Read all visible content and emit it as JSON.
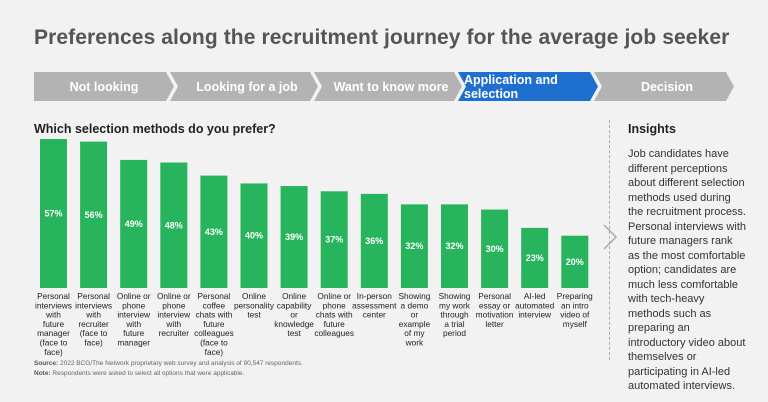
{
  "title": "Preferences along the recruitment journey for the average job seeker",
  "journey": [
    {
      "label": "Not looking",
      "active": false
    },
    {
      "label": "Looking for a job",
      "active": false
    },
    {
      "label": "Want to know more",
      "active": false
    },
    {
      "label": "Application and selection",
      "active": true
    },
    {
      "label": "Decision",
      "active": false
    }
  ],
  "colors": {
    "bar": "#27b45c",
    "active_step": "#1f6fd1",
    "inactive_step": "#b3b3b3"
  },
  "chart_data": {
    "type": "bar",
    "title": "Which selection methods do you prefer?",
    "categories": [
      "Personal interviews with future manager (face to face)",
      "Personal interviews with recruiter (face to face)",
      "Online or phone interview with future manager",
      "Online or phone interview with recruiter",
      "Personal coffee chats with future colleagues (face to face)",
      "Online personality test",
      "Online capability or knowledge test",
      "Online or phone chats with future colleagues",
      "In-person assessment center",
      "Showing a demo or example of my work",
      "Showing my work through a trial period",
      "Personal essay or motivation letter",
      "AI-led automated interview",
      "Preparing an intro video of myself"
    ],
    "category_lines": [
      [
        "Personal",
        "interviews",
        "with",
        "future",
        "manager",
        "(face to",
        "face)"
      ],
      [
        "Personal",
        "interviews",
        "with",
        "recruiter",
        "(face to",
        "face)"
      ],
      [
        "Online or",
        "phone",
        "interview",
        "with",
        "future",
        "manager"
      ],
      [
        "Online or",
        "phone",
        "interview",
        "with",
        "recruiter"
      ],
      [
        "Personal",
        "coffee",
        "chats with",
        "future",
        "colleagues",
        "(face to",
        "face)"
      ],
      [
        "Online",
        "personality",
        "test"
      ],
      [
        "Online",
        "capability",
        "or",
        "knowledge",
        "test"
      ],
      [
        "Online or",
        "phone",
        "chats with",
        "future",
        "colleagues"
      ],
      [
        "In-person",
        "assessment",
        "center"
      ],
      [
        "Showing",
        "a demo",
        "or",
        "example",
        "of my",
        "work"
      ],
      [
        "Showing",
        "my work",
        "through",
        "a trial",
        "period"
      ],
      [
        "Personal",
        "essay or",
        "motivation",
        "letter"
      ],
      [
        "AI-led",
        "automated",
        "interview"
      ],
      [
        "Preparing",
        "an intro",
        "video of",
        "myself"
      ]
    ],
    "values": [
      57,
      56,
      49,
      48,
      43,
      40,
      39,
      37,
      36,
      32,
      32,
      30,
      23,
      20
    ],
    "value_labels": [
      "57%",
      "56%",
      "49%",
      "48%",
      "43%",
      "40%",
      "39%",
      "37%",
      "36%",
      "32%",
      "32%",
      "30%",
      "23%",
      "20%"
    ],
    "ylim": [
      0,
      57
    ],
    "grid": false,
    "xlabel": "",
    "ylabel": ""
  },
  "insights": {
    "title": "Insights",
    "text": "Job candidates have different perceptions about different selection methods used during the recruitment process. Personal interviews with future managers rank as the most comfortable option; candidates are much less comfortable with tech-heavy methods such as preparing an introductory video about themselves or participating in AI-led automated interviews."
  },
  "footnotes": {
    "source_label": "Source:",
    "source_text": "2022 BCG/The Network proprietary web survey and analysis of 90,547 respondents.",
    "note_label": "Note:",
    "note_text": "Respondents were asked to select all options that were applicable."
  }
}
